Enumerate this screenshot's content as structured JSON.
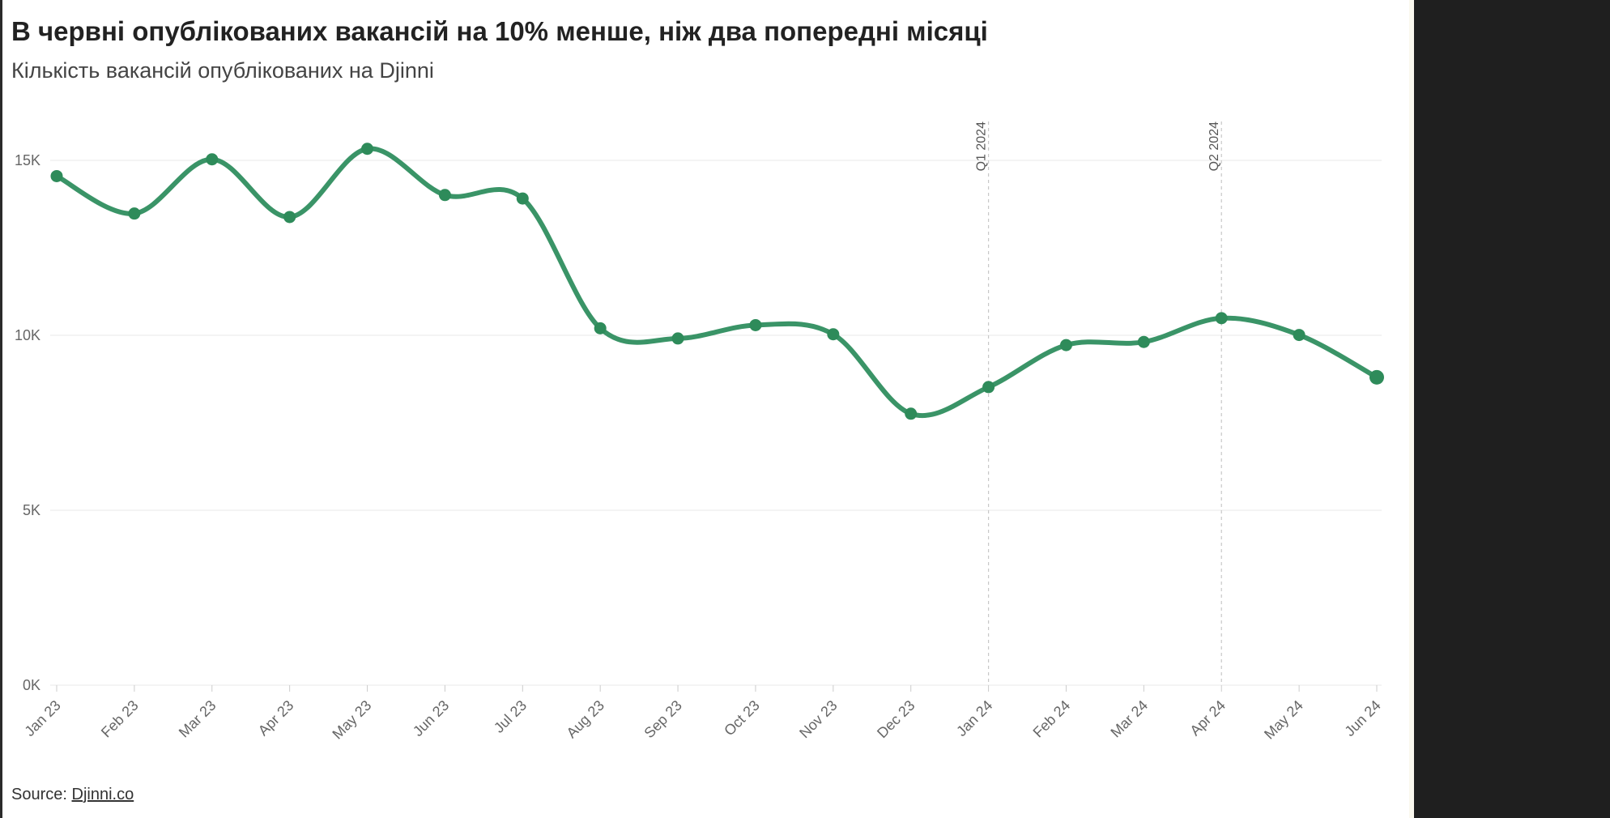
{
  "title": "В червні опублікованих вакансій на 10% менше, ніж два попередні місяці",
  "subtitle": "Кількість вакансій опублікованих на Djinni",
  "source": {
    "label": "Source:",
    "link_text": "Djinni.co"
  },
  "colors": {
    "line": "#3a9467",
    "marker": "#2e8b5a",
    "grid": "#e8e8e8",
    "annotation_line": "#c8c8c8"
  },
  "chart_data": {
    "type": "line",
    "title": "В червні опублікованих вакансій на 10% менше, ніж два попередні місяці",
    "subtitle": "Кількість вакансій опублікованих на Djinni",
    "xlabel": "",
    "ylabel": "",
    "categories": [
      "Jan 23",
      "Feb 23",
      "Mar 23",
      "Apr 23",
      "May 23",
      "Jun 23",
      "Jul 23",
      "Aug 23",
      "Sep 23",
      "Oct 23",
      "Nov 23",
      "Dec 23",
      "Jan 24",
      "Feb 24",
      "Mar 24",
      "Apr 24",
      "May 24",
      "Jun 24"
    ],
    "series": [
      {
        "values": [
          14550,
          13480,
          15030,
          13380,
          15330,
          14010,
          13910,
          10200,
          9910,
          10290,
          10030,
          7760,
          8520,
          9720,
          9810,
          10490,
          10010,
          8800
        ]
      }
    ],
    "ylim": [
      0,
      15000
    ],
    "yticks": [
      0,
      5000,
      10000,
      15000
    ],
    "ytick_labels": [
      "0K",
      "5K",
      "10K",
      "15K"
    ],
    "grid": true,
    "annotations": [
      {
        "label": "Q1 2024",
        "at": "Jan 24"
      },
      {
        "label": "Q2 2024",
        "at": "Apr 24"
      }
    ]
  }
}
